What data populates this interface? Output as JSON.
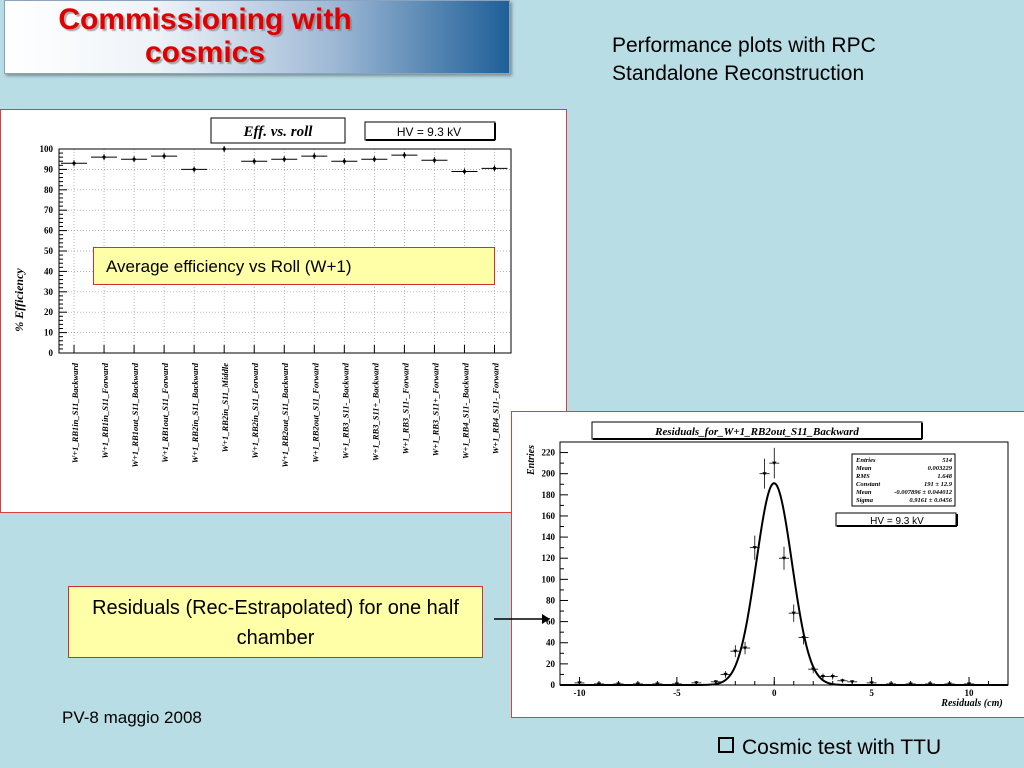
{
  "slide": {
    "title": "Commissioning with\ncosmics",
    "subtitle": "Performance plots with RPC\nStandalone Reconstruction",
    "callout_efficiency": "Average efficiency vs Roll (W+1)",
    "callout_residuals": "Residuals (Rec-Estrapolated) for one half chamber",
    "footer_left": "PV-8 maggio 2008",
    "bullet": "Cosmic test with TTU",
    "accent_color": "#e00000",
    "background_color": "#b9dde4"
  },
  "chart_data": [
    {
      "type": "scatter",
      "title": "Eff. vs. roll",
      "annotation": "HV = 9.3 kV",
      "ylabel": "% Efficiency",
      "xlabel": "",
      "ylim": [
        0,
        100
      ],
      "yticks": [
        0,
        10,
        20,
        30,
        40,
        50,
        60,
        70,
        80,
        90,
        100
      ],
      "grid": true,
      "categories": [
        "W+1_RB1in_S11_Backward",
        "W+1_RB1in_S11_Forward",
        "W+1_RB1out_S11_Backward",
        "W+1_RB1out_S11_Forward",
        "W+1_RB2in_S11_Backward",
        "W+1_RB2in_S11_Middle",
        "W+1_RB2in_S11_Forward",
        "W+1_RB2out_S11_Backward",
        "W+1_RB2out_S11_Forward",
        "W+1_RB3_S11-_Backward",
        "W+1_RB3_S11+_Backward",
        "W+1_RB3_S11-_Forward",
        "W+1_RB3_S11+_Forward",
        "W+1_RB4_S11-_Backward",
        "W+1_RB4_S11-_Forward"
      ],
      "values": [
        93,
        96,
        95,
        96.5,
        90,
        100,
        94,
        95,
        96.5,
        94,
        95,
        97,
        94.5,
        89,
        90.5
      ]
    },
    {
      "type": "histogram",
      "title": "Residuals_for_W+1_RB2out_S11_Backward",
      "annotation": "HV = 9.3 kV",
      "xlabel": "Residuals (cm)",
      "ylabel": "Entries",
      "xlim": [
        -11,
        12
      ],
      "ylim": [
        0,
        230
      ],
      "xticks": [
        -10,
        -5,
        0,
        5,
        10
      ],
      "yticks": [
        0,
        20,
        40,
        60,
        80,
        100,
        120,
        140,
        160,
        180,
        200,
        220
      ],
      "x": [
        -10,
        -9,
        -8,
        -7,
        -6,
        -5,
        -4,
        -3,
        -2.5,
        -2,
        -1.5,
        -1,
        -0.5,
        0,
        0.5,
        1,
        1.5,
        2,
        2.5,
        3,
        3.5,
        4,
        5,
        6,
        7,
        8,
        9,
        10
      ],
      "y": [
        2,
        1,
        1,
        1,
        1,
        1,
        2,
        3,
        10,
        32,
        35,
        130,
        200,
        210,
        120,
        68,
        45,
        15,
        8,
        8,
        4,
        3,
        2,
        1,
        1,
        1,
        1,
        1
      ],
      "fit": {
        "type": "gaussian",
        "constant": 191,
        "mean": -0.007896,
        "sigma": 0.9161
      },
      "stats": [
        {
          "label": "Entries",
          "value": "514"
        },
        {
          "label": "Mean",
          "value": "0.003229"
        },
        {
          "label": "RMS",
          "value": "1.648"
        },
        {
          "label": "Constant",
          "value": "191 ± 12.9"
        },
        {
          "label": "Mean",
          "value": "-0.007896 ± 0.044012"
        },
        {
          "label": "Sigma",
          "value": "0.9161 ± 0.0456"
        }
      ]
    }
  ]
}
